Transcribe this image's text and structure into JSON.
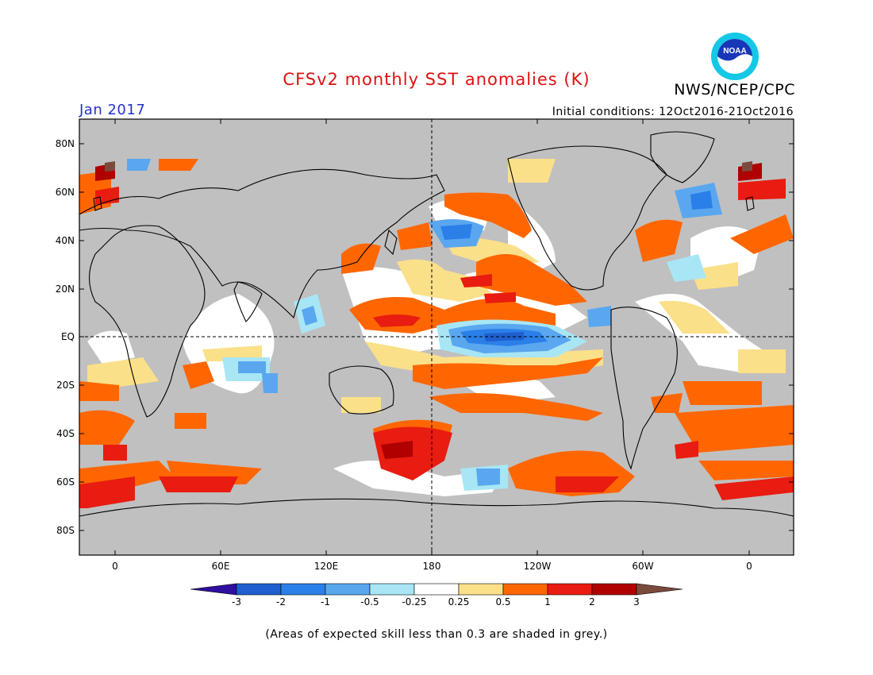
{
  "header": {
    "title": "CFSv2 monthly SST anomalies (K)",
    "agency": "NWS/NCEP/CPC",
    "logo_text": "NOAA",
    "period": "Jan 2017",
    "initial_conditions": "Initial conditions: 12Oct2016-21Oct2016"
  },
  "map": {
    "lat_labels": [
      "80N",
      "60N",
      "40N",
      "20N",
      "EQ",
      "20S",
      "40S",
      "60S",
      "80S"
    ],
    "lon_labels": [
      "0",
      "60E",
      "120E",
      "180",
      "120W",
      "60W",
      "0"
    ],
    "land_color": "#000000",
    "low_skill_color": "#c0c0c0"
  },
  "colorbar": {
    "levels": [
      "-3",
      "-2",
      "-1",
      "-0.5",
      "-0.25",
      "0.25",
      "0.5",
      "1",
      "2",
      "3"
    ],
    "colors": [
      "#2f0fa0",
      "#1f5fd0",
      "#2b7fe8",
      "#5aa7f0",
      "#a8e6f5",
      "#ffffff",
      "#fbe08a",
      "#ff6600",
      "#e81c10",
      "#b00000",
      "#7a4a3c"
    ]
  },
  "footnote": "(Areas of expected skill less than 0.3 are shaded in grey.)"
}
